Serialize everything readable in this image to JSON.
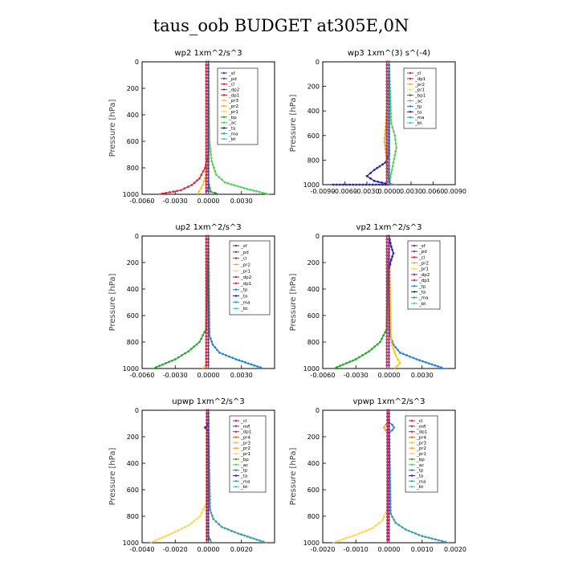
{
  "title": "taus_oob  BUDGET at305E,0N",
  "colors": {
    "sf": "#6a2a8a",
    "pd": "#7b2fa0",
    "cl": "#e0203a",
    "dp2": "#a0208a",
    "dp1": "#cc2244",
    "pr3": "#ffc800",
    "pr2": "#f5a623",
    "pr1": "#ffd54a",
    "pr4": "#e07010",
    "bp": "#22a02a",
    "ac": "#55cc55",
    "tp": "#1e7fd0",
    "ta": "#1a1aa0",
    "ma": "#3399aa",
    "bt": "#33cccc",
    "mfl": "#8e3070"
  },
  "chart_data": [
    {
      "type": "line",
      "title": "wp2   1xm^2/s^3",
      "ylabel": "Pressure  [hPa]",
      "ylim": [
        1000,
        0
      ],
      "xlim": [
        -0.006,
        0.006
      ],
      "xticks": [
        "-0.0060",
        "-0.0030",
        "0.0000",
        "0.0030"
      ],
      "yticks": [
        "0",
        "200",
        "400",
        "600",
        "800",
        "1000"
      ],
      "legend": [
        "_sf",
        "_pd",
        "_cl",
        "_dp2",
        "_dp1",
        "_pr3",
        "_pr2",
        "_pr1",
        "_bp",
        "_ac",
        "_ta",
        "_ma",
        "_bt"
      ],
      "series": [
        {
          "name": "_cl",
          "color": "#e0203a",
          "x": [
            0,
            0,
            -0.0003,
            -0.0008,
            -0.0015,
            -0.0025,
            -0.0045
          ],
          "y": [
            0,
            700,
            800,
            880,
            930,
            970,
            1000
          ]
        },
        {
          "name": "_pr3",
          "color": "#ffc800",
          "x": [
            0,
            0,
            -0.0002,
            -0.0005,
            -0.001
          ],
          "y": [
            0,
            750,
            850,
            930,
            1000
          ]
        },
        {
          "name": "_ac",
          "color": "#55cc55",
          "x": [
            0,
            0.0001,
            0.0003,
            0.0007,
            0.0015,
            0.0035,
            0.0055
          ],
          "y": [
            0,
            600,
            750,
            850,
            910,
            960,
            1000
          ]
        },
        {
          "name": "_bp",
          "color": "#22a02a",
          "x": [
            0,
            0,
            0.0002,
            0.001
          ],
          "y": [
            0,
            900,
            980,
            1000
          ]
        },
        {
          "name": "_bt",
          "color": "#33cccc",
          "x": [
            0,
            0,
            -0.0003
          ],
          "y": [
            0,
            950,
            1000
          ]
        },
        {
          "name": "_dp1",
          "color": "#cc2244",
          "x": [
            -0.0002,
            -0.0002
          ],
          "y": [
            0,
            1000
          ]
        },
        {
          "name": "_pd",
          "color": "#7b2fa0",
          "x": [
            0,
            0
          ],
          "y": [
            0,
            1000
          ]
        }
      ]
    },
    {
      "type": "line",
      "title": "wp3   1xm^(3) s^(-4)",
      "ylabel": "Pressure  [hPa]",
      "ylim": [
        1000,
        0
      ],
      "xlim": [
        -0.009,
        0.009
      ],
      "xticks": [
        "-0.0090",
        "-0.0060",
        "-0.0030",
        "0.0000",
        "0.0030",
        "0.0060",
        "0.0090"
      ],
      "yticks": [
        "0",
        "200",
        "400",
        "600",
        "800",
        "1000"
      ],
      "legend": [
        "_cl",
        "_dp1",
        "_pr2",
        "_pr1",
        "_bp1",
        "_ac",
        "_tp",
        "_ta",
        "_ma",
        "_bt"
      ],
      "series": [
        {
          "name": "_ta",
          "color": "#1a1aa0",
          "x": [
            0,
            0,
            -0.0005,
            -0.002,
            -0.003,
            -0.002,
            -0.0005,
            0,
            -0.008
          ],
          "y": [
            0,
            750,
            820,
            880,
            930,
            970,
            990,
            1000,
            1000
          ]
        },
        {
          "name": "_ac",
          "color": "#55cc55",
          "x": [
            0,
            0.0003,
            0.0008,
            0.001,
            0.0005,
            0
          ],
          "y": [
            0,
            500,
            600,
            700,
            850,
            1000
          ]
        },
        {
          "name": "_pr2",
          "color": "#f5a623",
          "x": [
            0,
            -0.0004,
            -0.0006,
            -0.0003,
            0
          ],
          "y": [
            0,
            500,
            650,
            800,
            1000
          ]
        },
        {
          "name": "_cl",
          "color": "#e0203a",
          "x": [
            0,
            0,
            0.0002
          ],
          "y": [
            0,
            950,
            1000
          ]
        },
        {
          "name": "_tp",
          "color": "#1e7fd0",
          "x": [
            0,
            0,
            0.0002,
            0.001
          ],
          "y": [
            0,
            980,
            995,
            1000
          ]
        },
        {
          "name": "_dp1",
          "color": "#cc2244",
          "x": [
            -0.0003,
            -0.0003
          ],
          "y": [
            0,
            1000
          ]
        }
      ]
    },
    {
      "type": "line",
      "title": "up2   1xm^2/s^3",
      "ylabel": "Pressure  [hPa]",
      "ylim": [
        1000,
        0
      ],
      "xlim": [
        -0.006,
        0.006
      ],
      "xticks": [
        "-0.0060",
        "-0.0030",
        "0.0000",
        "0.0030"
      ],
      "yticks": [
        "0",
        "200",
        "400",
        "600",
        "800",
        "1000"
      ],
      "legend": [
        "_sf",
        "_pd",
        "_cl",
        "_pr2",
        "_pr1",
        "_dp2",
        "_dp1",
        "_tp",
        "_ta",
        "_ma",
        "_bt"
      ],
      "series": [
        {
          "name": "_pr1",
          "color": "#22a02a",
          "x": [
            0,
            -0.0002,
            -0.0008,
            -0.0018,
            -0.003,
            -0.005
          ],
          "y": [
            0,
            700,
            800,
            870,
            930,
            1000
          ]
        },
        {
          "name": "_tp",
          "color": "#1e7fd0",
          "x": [
            0,
            0.0001,
            0.0004,
            0.001,
            0.0025,
            0.005
          ],
          "y": [
            0,
            750,
            820,
            880,
            930,
            1000
          ]
        },
        {
          "name": "_pr2",
          "color": "#ffc800",
          "x": [
            0,
            0,
            -0.0005
          ],
          "y": [
            0,
            950,
            1000
          ]
        },
        {
          "name": "_dp1",
          "color": "#cc2244",
          "x": [
            -0.0002,
            -0.0002
          ],
          "y": [
            0,
            1000
          ]
        },
        {
          "name": "_pd",
          "color": "#7b2fa0",
          "x": [
            0,
            0
          ],
          "y": [
            0,
            1000
          ]
        }
      ]
    },
    {
      "type": "line",
      "title": "vp2   1xm^2/s^3",
      "ylabel": "Pressure  [hPa]",
      "ylim": [
        1000,
        0
      ],
      "xlim": [
        -0.006,
        0.006
      ],
      "xticks": [
        "-0.0060",
        "-0.0030",
        "0.0000",
        "0.0030"
      ],
      "yticks": [
        "0",
        "200",
        "400",
        "600",
        "800",
        "1000"
      ],
      "legend": [
        "_sf",
        "_pd",
        "_cl",
        "_pr2",
        "_pr1",
        "_dp2",
        "_dp1",
        "_tp",
        "_ta",
        "_ma",
        "_bt"
      ],
      "series": [
        {
          "name": "_pr1",
          "color": "#22a02a",
          "x": [
            0,
            -0.0002,
            -0.0008,
            -0.0018,
            -0.003,
            -0.005
          ],
          "y": [
            0,
            700,
            800,
            870,
            930,
            1000
          ]
        },
        {
          "name": "_tp",
          "color": "#1e7fd0",
          "x": [
            0,
            0.0001,
            0.0004,
            0.001,
            0.0025,
            0.005
          ],
          "y": [
            0,
            750,
            820,
            880,
            930,
            1000
          ]
        },
        {
          "name": "_pr2",
          "color": "#ffc800",
          "x": [
            0,
            0.0002,
            0.0006,
            0.001,
            0.0005
          ],
          "y": [
            0,
            800,
            900,
            960,
            1000
          ]
        },
        {
          "name": "_ta",
          "color": "#1a1aa0",
          "x": [
            0,
            0.0002,
            0.0004,
            0.0002,
            0
          ],
          "y": [
            0,
            80,
            130,
            180,
            250
          ]
        },
        {
          "name": "_dp1",
          "color": "#cc2244",
          "x": [
            -0.0002,
            -0.0002
          ],
          "y": [
            0,
            1000
          ]
        },
        {
          "name": "_pd",
          "color": "#7b2fa0",
          "x": [
            0,
            0
          ],
          "y": [
            0,
            1000
          ]
        }
      ]
    },
    {
      "type": "line",
      "title": "upwp   1xm^2/s^3",
      "ylabel": "Pressure  [hPa]",
      "ylim": [
        1000,
        0
      ],
      "xlim": [
        -0.004,
        0.004
      ],
      "xticks": [
        "-0.0040",
        "-0.0020",
        "0.0000",
        "0.0020"
      ],
      "yticks": [
        "0",
        "200",
        "400",
        "600",
        "800",
        "1000"
      ],
      "legend": [
        "_cl",
        "_mfl",
        "_dp1",
        "_pr4",
        "_pr3",
        "_pr2",
        "_pr1",
        "_bp",
        "_ac",
        "_tp",
        "_ta",
        "_ma",
        "_bt"
      ],
      "series": [
        {
          "name": "_pr2",
          "color": "#ffd54a",
          "x": [
            0,
            -0.0001,
            -0.0005,
            -0.0012,
            -0.0022,
            -0.0035
          ],
          "y": [
            0,
            700,
            800,
            870,
            930,
            1000
          ]
        },
        {
          "name": "_tp",
          "color": "#3399aa",
          "x": [
            0,
            0.0001,
            0.0003,
            0.0008,
            0.0018,
            0.0035
          ],
          "y": [
            0,
            750,
            820,
            880,
            930,
            1000
          ]
        },
        {
          "name": "_bp",
          "color": "#22a02a",
          "x": [
            0,
            0,
            0.0002
          ],
          "y": [
            0,
            950,
            1000
          ]
        },
        {
          "name": "_ta",
          "color": "#1a1aa0",
          "x": [
            0,
            -0.0002,
            0
          ],
          "y": [
            100,
            130,
            160
          ]
        },
        {
          "name": "_dp1",
          "color": "#cc2244",
          "x": [
            -0.0001,
            -0.0001
          ],
          "y": [
            0,
            1000
          ]
        },
        {
          "name": "_cl",
          "color": "#7b2fa0",
          "x": [
            0,
            0
          ],
          "y": [
            0,
            1000
          ]
        }
      ]
    },
    {
      "type": "line",
      "title": "vpwp   1xm^2/s^3",
      "ylabel": "Pressure  [hPa]",
      "ylim": [
        1000,
        0
      ],
      "xlim": [
        -0.002,
        0.002
      ],
      "xticks": [
        "-0.0020",
        "-0.0010",
        "0.0000",
        "0.0010",
        "0.0020"
      ],
      "yticks": [
        "0",
        "200",
        "400",
        "600",
        "800",
        "1000"
      ],
      "legend": [
        "_cl",
        "_mfl",
        "_dp1",
        "_pr4",
        "_pr3",
        "_pr2",
        "_pr1",
        "_bp",
        "_ac",
        "_tp",
        "_ta",
        "_ma",
        "_bt"
      ],
      "series": [
        {
          "name": "_pr2",
          "color": "#ffd54a",
          "x": [
            0,
            -5e-05,
            -0.0002,
            -0.0005,
            -0.001,
            -0.0017
          ],
          "y": [
            0,
            750,
            830,
            890,
            940,
            1000
          ]
        },
        {
          "name": "_tp",
          "color": "#3399aa",
          "x": [
            0,
            5e-05,
            0.0002,
            0.0005,
            0.001,
            0.0018
          ],
          "y": [
            0,
            780,
            850,
            900,
            950,
            1000
          ]
        },
        {
          "name": "_pr3",
          "color": "#f5a623",
          "x": [
            0,
            -0.0001,
            -0.00015,
            -0.0001,
            0
          ],
          "y": [
            90,
            110,
            130,
            150,
            170
          ]
        },
        {
          "name": "_ta",
          "color": "#1e7fd0",
          "x": [
            0,
            0.0001,
            0.00015,
            0.0001,
            0
          ],
          "y": [
            90,
            110,
            130,
            150,
            170
          ]
        },
        {
          "name": "_dp1",
          "color": "#cc2244",
          "x": [
            -5e-05,
            -5e-05
          ],
          "y": [
            0,
            1000
          ]
        },
        {
          "name": "_cl",
          "color": "#7b2fa0",
          "x": [
            0,
            0
          ],
          "y": [
            0,
            1000
          ]
        }
      ]
    }
  ]
}
